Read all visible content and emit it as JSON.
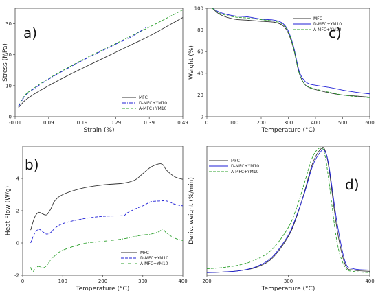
{
  "colors": {
    "mfc": "#333333",
    "dmfc": "#1f1fd6",
    "amfc": "#2ca02c"
  },
  "chart_data": [
    {
      "panel": "a)",
      "type": "line",
      "xlabel": "Strain (%)",
      "ylabel": "Stress (MPa)",
      "xlim": [
        -0.01,
        0.49
      ],
      "ylim": [
        0,
        35
      ],
      "xticks": [
        -0.01,
        0.09,
        0.19,
        0.29,
        0.39,
        0.49
      ],
      "xtick_labels": [
        "-0.01",
        "0.09",
        "0.19",
        "0.29",
        "0.39",
        "0.49"
      ],
      "yticks": [
        0,
        10,
        20,
        30
      ],
      "ytick_labels": [
        "0",
        "10",
        "20",
        "30"
      ],
      "legend_position": "bottom-right",
      "series": [
        {
          "name": "A-MFC+YM10",
          "key": "amfc",
          "dash": "dashed",
          "x": [
            0.0,
            0.02,
            0.05,
            0.09,
            0.14,
            0.19,
            0.24,
            0.29,
            0.34,
            0.39,
            0.44,
            0.49
          ],
          "y": [
            3.5,
            7.0,
            9.5,
            12.3,
            15.4,
            18.3,
            21.0,
            23.6,
            26.3,
            28.9,
            31.7,
            34.5
          ]
        },
        {
          "name": "D-MFC+YM10",
          "key": "dmfc",
          "dash": "dashdot",
          "x": [
            0.0,
            0.02,
            0.05,
            0.09,
            0.14,
            0.19,
            0.24,
            0.29,
            0.34,
            0.38
          ],
          "y": [
            3.2,
            6.7,
            9.3,
            12.1,
            15.2,
            18.1,
            20.8,
            23.4,
            26.0,
            28.8
          ]
        },
        {
          "name": "MFC",
          "key": "mfc",
          "dash": "solid",
          "x": [
            0.0,
            0.02,
            0.05,
            0.09,
            0.14,
            0.19,
            0.24,
            0.29,
            0.34,
            0.39,
            0.44,
            0.49
          ],
          "y": [
            2.9,
            5.3,
            7.5,
            10.0,
            12.9,
            15.6,
            18.2,
            20.8,
            23.4,
            26.0,
            29.0,
            32.0
          ]
        }
      ]
    },
    {
      "panel": "c)",
      "type": "line",
      "xlabel": "Temperature (°C)",
      "ylabel": "Weight (%)",
      "xlim": [
        0,
        600
      ],
      "ylim": [
        0,
        100
      ],
      "xticks": [
        0,
        100,
        200,
        300,
        400,
        500,
        600
      ],
      "xtick_labels": [
        "0",
        "100",
        "200",
        "300",
        "400",
        "500",
        "600"
      ],
      "yticks": [
        0,
        20,
        40,
        60,
        80,
        100
      ],
      "ytick_labels": [
        "0",
        "20",
        "40",
        "60",
        "80",
        "100"
      ],
      "legend_position": "top-right",
      "series": [
        {
          "name": "MFC",
          "key": "mfc",
          "dash": "solid",
          "x": [
            20,
            50,
            100,
            150,
            200,
            250,
            280,
            300,
            320,
            340,
            360,
            380,
            400,
            450,
            500,
            550,
            600
          ],
          "y": [
            100,
            94,
            90,
            89,
            88,
            87,
            84,
            77,
            62,
            40,
            30,
            26.5,
            25,
            22,
            20,
            19,
            18
          ]
        },
        {
          "name": "D-MFC+YM10",
          "key": "dmfc",
          "dash": "solid",
          "x": [
            20,
            50,
            100,
            150,
            200,
            250,
            280,
            300,
            320,
            340,
            360,
            380,
            400,
            450,
            500,
            550,
            600
          ],
          "y": [
            100,
            96,
            93,
            92,
            90,
            89,
            86,
            79,
            64,
            42,
            33,
            30,
            29,
            27,
            24.5,
            22.5,
            21
          ]
        },
        {
          "name": "A-MFC+YM10",
          "key": "amfc",
          "dash": "dashed",
          "x": [
            20,
            50,
            100,
            150,
            200,
            250,
            280,
            300,
            320,
            340,
            360,
            380,
            400,
            450,
            500,
            550,
            600
          ],
          "y": [
            100,
            95,
            92,
            91,
            89.5,
            88,
            85,
            78,
            63,
            40,
            30,
            27,
            25.5,
            22.5,
            20,
            18.5,
            17.5
          ]
        }
      ]
    },
    {
      "panel": "b)",
      "type": "line",
      "xlabel": "Temperature (°C)",
      "ylabel": "Heat Flow (W/g)",
      "xlim": [
        0,
        400
      ],
      "ylim": [
        -2,
        6
      ],
      "xticks": [
        0,
        100,
        200,
        300,
        400
      ],
      "xtick_labels": [
        "0",
        "100",
        "200",
        "300",
        "400"
      ],
      "yticks": [
        -2,
        0,
        2,
        4
      ],
      "ytick_labels": [
        "-2",
        "0",
        "2",
        "4"
      ],
      "legend_position": "bottom-right",
      "series": [
        {
          "name": "MFC",
          "key": "mfc",
          "dash": "solid",
          "x": [
            20,
            30,
            40,
            50,
            60,
            70,
            80,
            100,
            150,
            200,
            250,
            280,
            300,
            320,
            340,
            350,
            360,
            380,
            400
          ],
          "y": [
            0.8,
            1.6,
            1.9,
            1.8,
            1.75,
            2.1,
            2.6,
            3.0,
            3.4,
            3.6,
            3.7,
            3.9,
            4.3,
            4.7,
            4.9,
            4.85,
            4.5,
            4.1,
            3.95
          ]
        },
        {
          "name": "D-MFC+YM10",
          "key": "dmfc",
          "dash": "dashed",
          "x": [
            20,
            30,
            40,
            50,
            60,
            70,
            80,
            100,
            150,
            200,
            250,
            260,
            280,
            300,
            320,
            340,
            360,
            380,
            400
          ],
          "y": [
            0.0,
            0.6,
            0.85,
            0.7,
            0.55,
            0.65,
            0.9,
            1.2,
            1.5,
            1.65,
            1.7,
            1.85,
            2.1,
            2.3,
            2.55,
            2.6,
            2.6,
            2.4,
            2.3
          ]
        },
        {
          "name": "A-MFC+YM10",
          "key": "amfc",
          "dash": "dashdot",
          "x": [
            20,
            25,
            30,
            40,
            50,
            60,
            70,
            80,
            100,
            150,
            180,
            200,
            250,
            280,
            300,
            320,
            340,
            350,
            360,
            380,
            400
          ],
          "y": [
            -1.5,
            -1.85,
            -1.6,
            -1.45,
            -1.55,
            -1.4,
            -1.05,
            -0.8,
            -0.45,
            -0.05,
            0.05,
            0.1,
            0.25,
            0.4,
            0.5,
            0.55,
            0.7,
            0.85,
            0.6,
            0.3,
            0.15
          ]
        }
      ]
    },
    {
      "panel": "d)",
      "type": "line",
      "xlabel": "Temperature (°C)",
      "ylabel": "Deriv. weight (%/min)",
      "xlim": [
        200,
        400
      ],
      "ylim": [
        0,
        1
      ],
      "xticks": [
        200,
        300,
        400
      ],
      "xtick_labels": [
        "200",
        "300",
        "400"
      ],
      "yticks": [],
      "ytick_labels": [],
      "legend_position": "top-left",
      "series": [
        {
          "name": "MFC",
          "key": "mfc",
          "dash": "solid",
          "x": [
            200,
            220,
            240,
            260,
            280,
            300,
            310,
            320,
            330,
            340,
            345,
            350,
            360,
            370,
            380,
            400
          ],
          "y": [
            0.02,
            0.025,
            0.035,
            0.06,
            0.13,
            0.3,
            0.45,
            0.65,
            0.87,
            0.98,
            0.97,
            0.82,
            0.35,
            0.08,
            0.04,
            0.03
          ]
        },
        {
          "name": "D-MFC+YM10",
          "key": "dmfc",
          "dash": "solid",
          "x": [
            200,
            220,
            240,
            260,
            280,
            300,
            310,
            320,
            330,
            340,
            345,
            350,
            360,
            370,
            380,
            400
          ],
          "y": [
            0.02,
            0.025,
            0.035,
            0.065,
            0.14,
            0.31,
            0.46,
            0.64,
            0.85,
            0.96,
            0.96,
            0.84,
            0.4,
            0.1,
            0.05,
            0.04
          ]
        },
        {
          "name": "A-MFC+YM10",
          "key": "amfc",
          "dash": "dashed",
          "x": [
            200,
            220,
            240,
            260,
            280,
            300,
            310,
            320,
            330,
            340,
            345,
            350,
            360,
            370,
            380,
            400
          ],
          "y": [
            0.05,
            0.06,
            0.08,
            0.12,
            0.2,
            0.37,
            0.52,
            0.72,
            0.92,
            0.99,
            0.93,
            0.72,
            0.25,
            0.06,
            0.03,
            0.02
          ]
        }
      ]
    }
  ]
}
